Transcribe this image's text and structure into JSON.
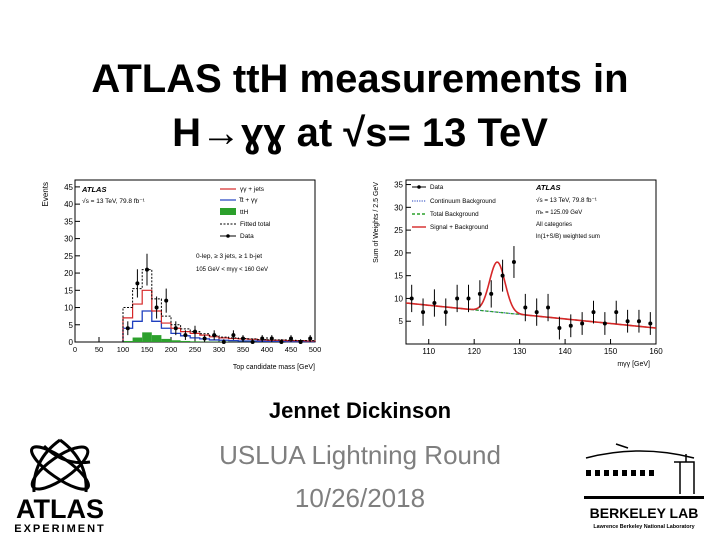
{
  "slide": {
    "title_line1": "ATLAS ttH measurements in",
    "title_line2": "H→ɣɣ at √s= 13 TeV",
    "author": "Jennet Dickinson",
    "event": "USLUA Lightning Round",
    "date": "10/26/2018"
  },
  "logos": {
    "atlas": {
      "name": "ATLAS",
      "sub": "EXPERIMENT"
    },
    "berkeley": {
      "name": "BERKELEY LAB",
      "sub": "Lawrence Berkeley National Laboratory"
    }
  },
  "chart_data": [
    {
      "type": "bar",
      "xlabel": "Top candidate mass [GeV]",
      "ylabel": "Events",
      "xlim": [
        0,
        500
      ],
      "ylim": [
        0,
        47
      ],
      "xticks": [
        0,
        50,
        100,
        150,
        200,
        250,
        300,
        350,
        400,
        450,
        500
      ],
      "yticks": [
        0,
        5,
        10,
        15,
        20,
        25,
        30,
        35,
        40,
        45
      ],
      "texts": {
        "atlas": "ATLAS",
        "lumi": "√s = 13 TeV,  79.8 fb⁻¹",
        "sel1": "0-lep, ≥ 3 jets, ≥ 1 b-jet",
        "sel2": "105 GeV < mγγ < 160 GeV"
      },
      "legend": [
        "γγ + jets",
        "t̅t + γγ",
        "ttH",
        "Fitted total",
        "Data"
      ],
      "bin_edges": [
        100,
        120,
        140,
        160,
        180,
        200,
        220,
        240,
        260,
        280,
        300,
        320,
        340,
        360,
        380,
        400,
        420,
        440,
        460,
        480,
        500
      ],
      "series": [
        {
          "name": "ttH",
          "values": [
            0.3,
            1.3,
            2.8,
            2.0,
            0.9,
            0.5,
            0.3,
            0.2,
            0.1,
            0.1,
            0.1,
            0.05,
            0.05,
            0.05,
            0.05,
            0.05,
            0.02,
            0.02,
            0.02,
            0.02
          ]
        },
        {
          "name": "t̅t + γγ",
          "values": [
            4.0,
            6.0,
            9.0,
            6.0,
            4.0,
            2.5,
            1.8,
            1.2,
            0.9,
            0.6,
            0.5,
            0.4,
            0.3,
            0.3,
            0.2,
            0.2,
            0.2,
            0.1,
            0.1,
            0.1
          ]
        },
        {
          "name": "γγ + jets",
          "values": [
            7.0,
            11.0,
            15.0,
            9.0,
            5.5,
            4.0,
            3.0,
            2.5,
            2.0,
            1.5,
            1.2,
            1.0,
            0.9,
            0.8,
            0.6,
            0.5,
            0.5,
            0.4,
            0.4,
            0.3
          ]
        },
        {
          "name": "Fitted total",
          "values": [
            10.0,
            15.5,
            21.0,
            12.5,
            7.5,
            5.0,
            3.8,
            3.0,
            2.4,
            1.8,
            1.4,
            1.2,
            1.0,
            0.9,
            0.7,
            0.6,
            0.6,
            0.5,
            0.4,
            0.4
          ]
        }
      ],
      "data_points": {
        "x": [
          110,
          130,
          150,
          170,
          190,
          210,
          230,
          250,
          270,
          290,
          310,
          330,
          350,
          370,
          390,
          410,
          430,
          450,
          470,
          490
        ],
        "y": [
          4,
          17,
          21,
          10,
          12,
          4,
          2,
          3,
          1,
          2,
          0,
          2,
          1,
          0,
          1,
          1,
          0,
          1,
          0,
          1
        ],
        "err": [
          2.0,
          4.1,
          4.6,
          3.2,
          3.5,
          2.0,
          1.4,
          1.7,
          1.0,
          1.4,
          0.8,
          1.4,
          1.0,
          0.8,
          1.0,
          1.0,
          0.8,
          1.0,
          0.8,
          1.0
        ]
      }
    },
    {
      "type": "scatter",
      "xlabel": "mγγ [GeV]",
      "ylabel": "Sum of Weights /  2.5 GeV",
      "xlim": [
        105,
        160
      ],
      "ylim": [
        0,
        36
      ],
      "xticks": [
        110,
        120,
        130,
        140,
        150,
        160
      ],
      "yticks": [
        5,
        10,
        15,
        20,
        25,
        30,
        35
      ],
      "texts": {
        "atlas": "ATLAS",
        "lumi": "√s = 13 TeV,  79.8 fb⁻¹",
        "mass": "mₕ = 125.09 GeV",
        "cat": "All categories",
        "weight": "ln(1+S/B) weighted sum"
      },
      "legend": [
        "Data",
        "Continuum Background",
        "Total Background",
        "Signal + Background"
      ],
      "data_points": {
        "x": [
          106.25,
          108.75,
          111.25,
          113.75,
          116.25,
          118.75,
          121.25,
          123.75,
          126.25,
          128.75,
          131.25,
          133.75,
          136.25,
          138.75,
          141.25,
          143.75,
          146.25,
          148.75,
          151.25,
          153.75,
          156.25,
          158.75
        ],
        "y": [
          10,
          7,
          9,
          7,
          10,
          10,
          11,
          11,
          15,
          18,
          8,
          7,
          8,
          3.5,
          4,
          4.5,
          7,
          4.5,
          7,
          5,
          5,
          4.5
        ],
        "err": [
          3,
          3,
          3,
          3,
          3,
          3,
          3,
          3,
          3.5,
          3.5,
          3,
          3,
          3,
          2.5,
          2.5,
          2.5,
          2.5,
          2.5,
          2.5,
          2.5,
          2.5,
          2.5
        ]
      },
      "background": {
        "x": [
          105,
          160
        ],
        "y": [
          9.0,
          3.5
        ]
      },
      "signal": {
        "mass": 125.09,
        "peak": 11.0,
        "width": 1.7
      }
    }
  ]
}
